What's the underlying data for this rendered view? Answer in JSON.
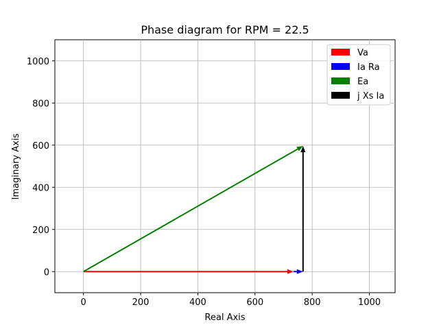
{
  "chart_data": {
    "type": "line",
    "title": "Phase diagram for RPM = 22.5",
    "xlabel": "Real Axis",
    "ylabel": "Imaginary Axis",
    "xlim": [
      -100,
      1090
    ],
    "ylim": [
      -100,
      1100
    ],
    "xticks": [
      0,
      200,
      400,
      600,
      800,
      1000
    ],
    "yticks": [
      0,
      200,
      400,
      600,
      800,
      1000
    ],
    "grid": true,
    "legend_position": "top-right",
    "series": [
      {
        "name": "Va",
        "color": "#ff0000",
        "start": [
          0,
          0
        ],
        "end": [
          735,
          0
        ]
      },
      {
        "name": "Ia Ra",
        "color": "#0000ff",
        "start": [
          735,
          0
        ],
        "end": [
          768,
          0
        ]
      },
      {
        "name": "Ea",
        "color": "#008000",
        "start": [
          0,
          0
        ],
        "end": [
          768,
          596
        ]
      },
      {
        "name": "j Xs Ia",
        "color": "#000000",
        "start": [
          768,
          0
        ],
        "end": [
          768,
          596
        ]
      }
    ]
  }
}
